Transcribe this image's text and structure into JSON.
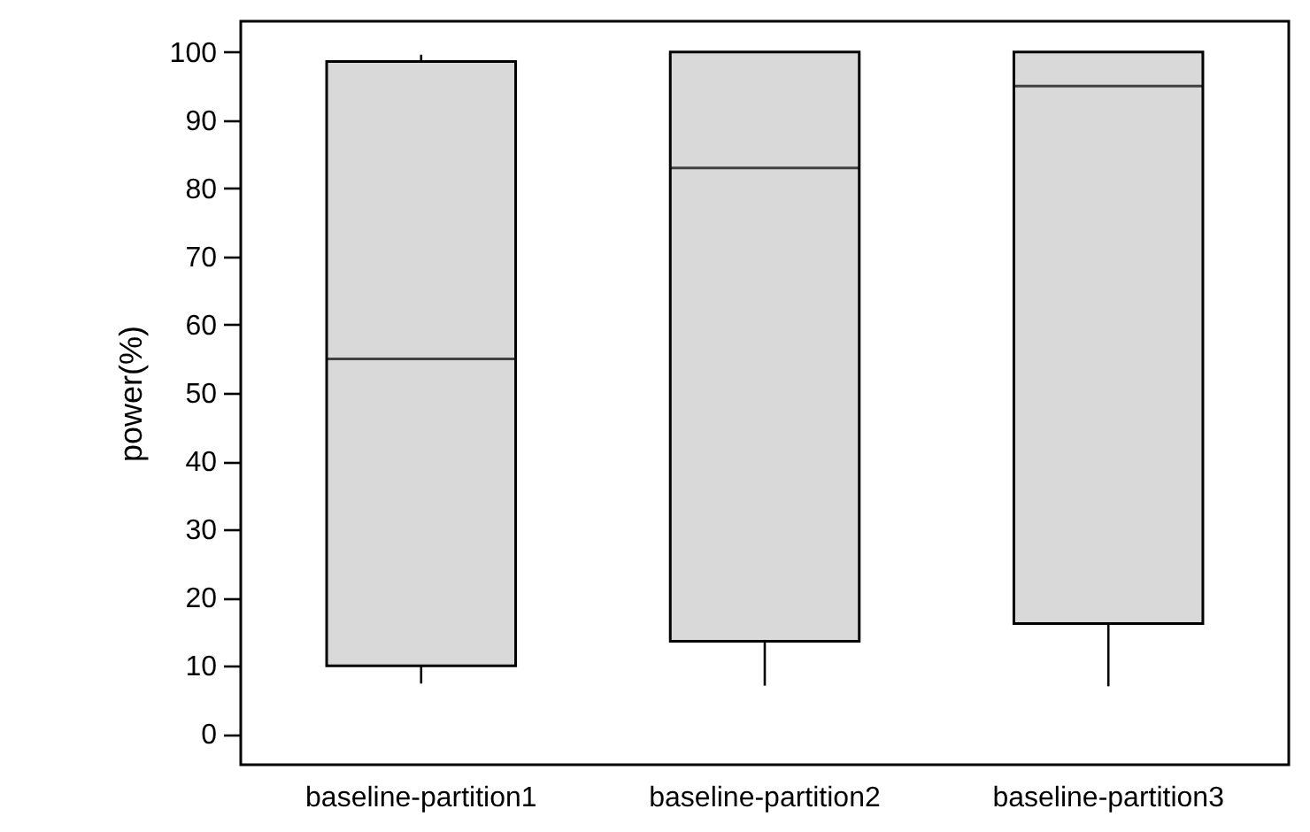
{
  "chart_data": {
    "type": "box",
    "ylabel": "power(%)",
    "categories": [
      "baseline-partition1",
      "baseline-partition2",
      "baseline-partition3"
    ],
    "boxes": [
      {
        "low": 7.4,
        "q1": 10,
        "median": 55,
        "q3": 98.6,
        "high": 99.6
      },
      {
        "low": 7.1,
        "q1": 13.6,
        "median": 83,
        "q3": 100,
        "high": 100
      },
      {
        "low": 7,
        "q1": 16.2,
        "median": 95,
        "q3": 100,
        "high": 100
      }
    ],
    "color": "#d9d9d9",
    "ylim": [
      -4.5,
      104.5
    ],
    "yticks": [
      0,
      10,
      20,
      30,
      40,
      50,
      60,
      70,
      80,
      90,
      100
    ],
    "grid": false
  }
}
